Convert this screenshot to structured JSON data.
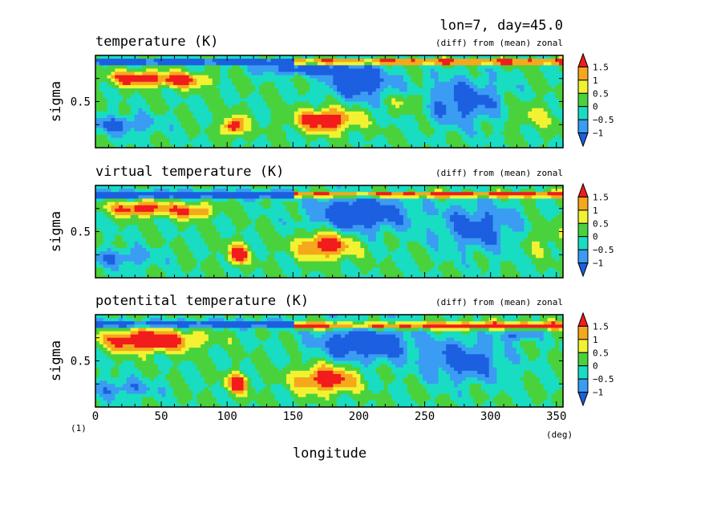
{
  "figure": {
    "header": "lon=7, day=45.0",
    "panel_label": "(1)",
    "xlabel": "longitude",
    "xunit": "(deg)"
  },
  "colors": {
    "levels": [
      "#1c5fe0",
      "#3a9cf2",
      "#19ddc2",
      "#4ad23c",
      "#f2f232",
      "#f5a81c",
      "#f21c1c"
    ],
    "frame": "#000000"
  },
  "chart_data": [
    {
      "type": "heatmap",
      "title": "temperature (K)",
      "subtitle": "(diff) from (mean) zonal",
      "ylabel": "sigma",
      "x_range": [
        0,
        355
      ],
      "y_range": [
        1,
        0
      ],
      "xticks": [
        0,
        50,
        100,
        150,
        200,
        250,
        300,
        350
      ],
      "yticks": [
        0.5
      ],
      "colorbar_labels": [
        "1.5",
        "1",
        "0.5",
        "0",
        "−0.5",
        "−1"
      ],
      "bounds": [
        -1,
        -0.5,
        0,
        0.5,
        1,
        1.5
      ],
      "blobs": [
        {
          "lon": 30,
          "sigma": 0.75,
          "rl": 20,
          "rs": 0.08,
          "amp": 2.0
        },
        {
          "lon": 65,
          "sigma": 0.73,
          "rl": 20,
          "rs": 0.08,
          "amp": 1.8
        },
        {
          "lon": 105,
          "sigma": 0.23,
          "rl": 8,
          "rs": 0.1,
          "amp": 2.2
        },
        {
          "lon": 175,
          "sigma": 0.3,
          "rl": 22,
          "rs": 0.12,
          "amp": 2.2
        },
        {
          "lon": 160,
          "sigma": 0.85,
          "rl": 35,
          "rs": 0.06,
          "amp": -1.6
        },
        {
          "lon": 200,
          "sigma": 0.7,
          "rl": 25,
          "rs": 0.18,
          "amp": -1.6
        },
        {
          "lon": 280,
          "sigma": 0.5,
          "rl": 30,
          "rs": 0.25,
          "amp": -1.4
        },
        {
          "lon": 20,
          "sigma": 0.25,
          "rl": 25,
          "rs": 0.1,
          "amp": -1.2
        },
        {
          "lon": 330,
          "sigma": 0.35,
          "rl": 25,
          "rs": 0.15,
          "amp": 0.6
        },
        {
          "lon": 240,
          "sigma": 0.5,
          "rl": 15,
          "rs": 0.1,
          "amp": 0.8
        }
      ],
      "bands": [
        {
          "lon0": 0,
          "lon1": 150,
          "sigma": 0.93,
          "rs": 0.03,
          "amp": -1.8
        },
        {
          "lon0": 150,
          "lon1": 355,
          "sigma": 0.93,
          "rs": 0.03,
          "amp": 2.0
        }
      ]
    },
    {
      "type": "heatmap",
      "title": "virtual temperature (K)",
      "subtitle": "(diff) from (mean) zonal",
      "ylabel": "sigma",
      "x_range": [
        0,
        355
      ],
      "y_range": [
        1,
        0
      ],
      "xticks": [
        0,
        50,
        100,
        150,
        200,
        250,
        300,
        350
      ],
      "yticks": [
        0.5
      ],
      "colorbar_labels": [
        "1.5",
        "1",
        "0.5",
        "0",
        "−0.5",
        "−1"
      ],
      "bounds": [
        -1,
        -0.5,
        0,
        0.5,
        1,
        1.5
      ],
      "blobs": [
        {
          "lon": 35,
          "sigma": 0.75,
          "rl": 25,
          "rs": 0.08,
          "amp": 2.0
        },
        {
          "lon": 75,
          "sigma": 0.72,
          "rl": 15,
          "rs": 0.08,
          "amp": 1.6
        },
        {
          "lon": 108,
          "sigma": 0.25,
          "rl": 8,
          "rs": 0.1,
          "amp": 2.1
        },
        {
          "lon": 175,
          "sigma": 0.35,
          "rl": 20,
          "rs": 0.14,
          "amp": 2.1
        },
        {
          "lon": 200,
          "sigma": 0.7,
          "rl": 35,
          "rs": 0.2,
          "amp": -1.8
        },
        {
          "lon": 290,
          "sigma": 0.55,
          "rl": 30,
          "rs": 0.25,
          "amp": -1.3
        },
        {
          "lon": 20,
          "sigma": 0.22,
          "rl": 25,
          "rs": 0.1,
          "amp": -1.0
        },
        {
          "lon": 340,
          "sigma": 0.4,
          "rl": 20,
          "rs": 0.15,
          "amp": 0.5
        }
      ],
      "bands": [
        {
          "lon0": 0,
          "lon1": 150,
          "sigma": 0.9,
          "rs": 0.04,
          "amp": -1.8
        },
        {
          "lon0": 150,
          "lon1": 355,
          "sigma": 0.9,
          "rs": 0.03,
          "amp": 2.0
        }
      ]
    },
    {
      "type": "heatmap",
      "title": "potentital temperature (K)",
      "subtitle": "(diff) from (mean) zonal",
      "ylabel": "sigma",
      "x_range": [
        0,
        355
      ],
      "y_range": [
        1,
        0
      ],
      "xticks": [
        0,
        50,
        100,
        150,
        200,
        250,
        300,
        350
      ],
      "yticks": [
        0.5
      ],
      "colorbar_labels": [
        "1.5",
        "1",
        "0.5",
        "0",
        "−0.5",
        "−1"
      ],
      "bounds": [
        -1,
        -0.5,
        0,
        0.5,
        1,
        1.5
      ],
      "blobs": [
        {
          "lon": 40,
          "sigma": 0.72,
          "rl": 35,
          "rs": 0.12,
          "amp": 2.4
        },
        {
          "lon": 108,
          "sigma": 0.25,
          "rl": 8,
          "rs": 0.1,
          "amp": 2.2
        },
        {
          "lon": 175,
          "sigma": 0.3,
          "rl": 22,
          "rs": 0.14,
          "amp": 2.2
        },
        {
          "lon": 205,
          "sigma": 0.7,
          "rl": 35,
          "rs": 0.2,
          "amp": -1.8
        },
        {
          "lon": 280,
          "sigma": 0.5,
          "rl": 30,
          "rs": 0.22,
          "amp": -1.4
        },
        {
          "lon": 320,
          "sigma": 0.78,
          "rl": 15,
          "rs": 0.06,
          "amp": -1.2
        },
        {
          "lon": 20,
          "sigma": 0.2,
          "rl": 25,
          "rs": 0.1,
          "amp": -1.0
        }
      ],
      "bands": [
        {
          "lon0": 0,
          "lon1": 150,
          "sigma": 0.9,
          "rs": 0.04,
          "amp": -1.6
        },
        {
          "lon0": 150,
          "lon1": 355,
          "sigma": 0.88,
          "rs": 0.04,
          "amp": 2.0
        }
      ]
    }
  ]
}
